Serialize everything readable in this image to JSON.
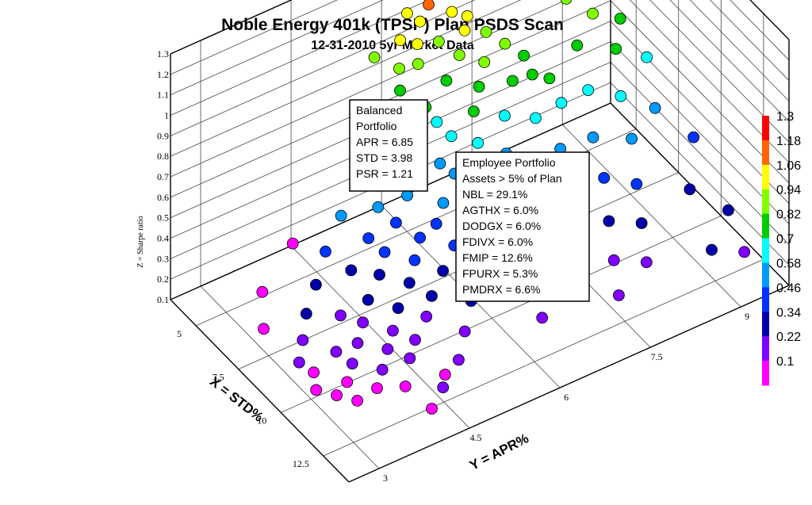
{
  "chart_data": {
    "type": "scatter",
    "projection": "3d",
    "title": "Noble Energy 401k (TPSP) Plan PSDS Scan",
    "subtitle": "12-31-2010 5yr Market Data",
    "xlabel": "X = STD%",
    "ylabel": "Y = APR%",
    "zlabel": "Z = Sharpe ratio",
    "x_ticks": [
      "5",
      "7.5",
      "10",
      "12.5"
    ],
    "y_ticks": [
      "3",
      "4.5",
      "6",
      "7.5",
      "9"
    ],
    "z_ticks": [
      "0.1",
      "0.2",
      "0.3",
      "0.4",
      "0.5",
      "0.6",
      "0.7",
      "0.8",
      "0.9",
      "1",
      "1.1",
      "1.2",
      "1.3"
    ],
    "xlim": [
      3.5,
      14
    ],
    "ylim": [
      2.5,
      9.8
    ],
    "zlim": [
      0.1,
      1.3
    ],
    "grid": true,
    "colorbar": {
      "ticks": [
        "1.3",
        "1.18",
        "1.06",
        "0.94",
        "0.82",
        "0.7",
        "0.58",
        "0.46",
        "0.34",
        "0.22",
        "0.1"
      ],
      "colors": [
        "#ff0000",
        "#ff6600",
        "#ffff00",
        "#80ff00",
        "#00cc00",
        "#00ffff",
        "#0099ff",
        "#0033ff",
        "#0000aa",
        "#8000ff",
        "#ff00ff"
      ]
    },
    "annotations": [
      {
        "name": "balanced-portfolio",
        "lines": [
          "Balanced",
          "Portfolio",
          "APR = 6.85",
          "STD = 3.98",
          "PSR = 1.21"
        ]
      },
      {
        "name": "employee-portfolio",
        "lines": [
          "Employee Portfolio",
          "Assets > 5% of Plan",
          "NBL = 29.1%",
          "AGTHX = 6.0%",
          "DODGX = 6.0%",
          "FDIVX = 6.0%",
          "FMIP = 12.6%",
          "FPURX = 5.3%",
          "PMDRX =  6.6%"
        ]
      }
    ],
    "points": [
      {
        "x": 4.0,
        "y": 6.85,
        "z": 1.21
      },
      {
        "x": 3.95,
        "y": 6.7,
        "z": 1.2
      },
      {
        "x": 4.1,
        "y": 7.0,
        "z": 1.19
      },
      {
        "x": 4.2,
        "y": 6.6,
        "z": 1.15
      },
      {
        "x": 4.3,
        "y": 7.1,
        "z": 1.14
      },
      {
        "x": 4.4,
        "y": 6.9,
        "z": 1.12
      },
      {
        "x": 4.5,
        "y": 6.5,
        "z": 1.1
      },
      {
        "x": 3.9,
        "y": 6.4,
        "z": 1.17
      },
      {
        "x": 4.6,
        "y": 7.2,
        "z": 1.08
      },
      {
        "x": 4.8,
        "y": 6.8,
        "z": 1.05
      },
      {
        "x": 5.0,
        "y": 7.0,
        "z": 1.02
      },
      {
        "x": 4.7,
        "y": 6.3,
        "z": 1.06
      },
      {
        "x": 5.2,
        "y": 6.9,
        "z": 0.98
      },
      {
        "x": 5.4,
        "y": 7.2,
        "z": 0.95
      },
      {
        "x": 5.1,
        "y": 6.5,
        "z": 0.97
      },
      {
        "x": 5.6,
        "y": 6.7,
        "z": 0.92
      },
      {
        "x": 5.8,
        "y": 7.4,
        "z": 0.9
      },
      {
        "x": 5.3,
        "y": 6.1,
        "z": 0.93
      },
      {
        "x": 6.0,
        "y": 7.0,
        "z": 0.88
      },
      {
        "x": 5.9,
        "y": 6.4,
        "z": 0.86
      },
      {
        "x": 6.2,
        "y": 7.6,
        "z": 0.85
      },
      {
        "x": 6.4,
        "y": 6.8,
        "z": 0.82
      },
      {
        "x": 6.1,
        "y": 6.0,
        "z": 0.8
      },
      {
        "x": 6.6,
        "y": 7.3,
        "z": 0.8
      },
      {
        "x": 6.8,
        "y": 6.6,
        "z": 0.76
      },
      {
        "x": 6.5,
        "y": 5.8,
        "z": 0.74
      },
      {
        "x": 7.0,
        "y": 7.8,
        "z": 0.78
      },
      {
        "x": 7.2,
        "y": 7.0,
        "z": 0.72
      },
      {
        "x": 6.9,
        "y": 6.2,
        "z": 0.7
      },
      {
        "x": 7.4,
        "y": 6.5,
        "z": 0.67
      },
      {
        "x": 7.1,
        "y": 5.6,
        "z": 0.64
      },
      {
        "x": 7.6,
        "y": 7.4,
        "z": 0.69
      },
      {
        "x": 7.8,
        "y": 6.0,
        "z": 0.62
      },
      {
        "x": 7.5,
        "y": 5.3,
        "z": 0.58
      },
      {
        "x": 8.0,
        "y": 6.8,
        "z": 0.63
      },
      {
        "x": 8.2,
        "y": 5.7,
        "z": 0.55
      },
      {
        "x": 7.9,
        "y": 5.0,
        "z": 0.52
      },
      {
        "x": 8.4,
        "y": 6.3,
        "z": 0.56
      },
      {
        "x": 8.6,
        "y": 5.2,
        "z": 0.48
      },
      {
        "x": 8.3,
        "y": 4.7,
        "z": 0.45
      },
      {
        "x": 8.8,
        "y": 5.9,
        "z": 0.5
      },
      {
        "x": 9.0,
        "y": 5.0,
        "z": 0.43
      },
      {
        "x": 8.7,
        "y": 4.5,
        "z": 0.4
      },
      {
        "x": 9.2,
        "y": 5.6,
        "z": 0.44
      },
      {
        "x": 9.4,
        "y": 4.8,
        "z": 0.38
      },
      {
        "x": 9.1,
        "y": 4.2,
        "z": 0.35
      },
      {
        "x": 9.6,
        "y": 5.3,
        "z": 0.39
      },
      {
        "x": 9.8,
        "y": 4.5,
        "z": 0.33
      },
      {
        "x": 9.5,
        "y": 4.0,
        "z": 0.3
      },
      {
        "x": 10.0,
        "y": 5.0,
        "z": 0.34
      },
      {
        "x": 10.2,
        "y": 4.3,
        "z": 0.28
      },
      {
        "x": 9.9,
        "y": 3.8,
        "z": 0.26
      },
      {
        "x": 10.4,
        "y": 4.8,
        "z": 0.3
      },
      {
        "x": 10.6,
        "y": 4.1,
        "z": 0.25
      },
      {
        "x": 10.3,
        "y": 3.6,
        "z": 0.22
      },
      {
        "x": 10.8,
        "y": 4.5,
        "z": 0.26
      },
      {
        "x": 11.0,
        "y": 3.9,
        "z": 0.21
      },
      {
        "x": 10.7,
        "y": 3.4,
        "z": 0.19
      },
      {
        "x": 11.2,
        "y": 4.3,
        "z": 0.23
      },
      {
        "x": 11.4,
        "y": 3.7,
        "z": 0.18
      },
      {
        "x": 5.0,
        "y": 8.2,
        "z": 1.0
      },
      {
        "x": 5.5,
        "y": 8.5,
        "z": 0.95
      },
      {
        "x": 6.0,
        "y": 8.8,
        "z": 0.88
      },
      {
        "x": 6.5,
        "y": 8.4,
        "z": 0.82
      },
      {
        "x": 7.0,
        "y": 8.9,
        "z": 0.78
      },
      {
        "x": 7.5,
        "y": 8.3,
        "z": 0.7
      },
      {
        "x": 8.0,
        "y": 8.7,
        "z": 0.66
      },
      {
        "x": 8.5,
        "y": 8.1,
        "z": 0.58
      },
      {
        "x": 9.0,
        "y": 8.6,
        "z": 0.55
      },
      {
        "x": 9.5,
        "y": 8.0,
        "z": 0.48
      },
      {
        "x": 10.0,
        "y": 8.4,
        "z": 0.44
      },
      {
        "x": 10.5,
        "y": 7.8,
        "z": 0.38
      },
      {
        "x": 11.0,
        "y": 8.2,
        "z": 0.36
      },
      {
        "x": 11.5,
        "y": 7.6,
        "z": 0.3
      },
      {
        "x": 12.0,
        "y": 8.0,
        "z": 0.28
      },
      {
        "x": 12.5,
        "y": 7.4,
        "z": 0.24
      },
      {
        "x": 6.2,
        "y": 9.2,
        "z": 0.82
      },
      {
        "x": 7.4,
        "y": 9.3,
        "z": 0.72
      },
      {
        "x": 8.6,
        "y": 9.1,
        "z": 0.6
      },
      {
        "x": 9.8,
        "y": 9.4,
        "z": 0.52
      },
      {
        "x": 11.0,
        "y": 9.0,
        "z": 0.42
      },
      {
        "x": 12.2,
        "y": 9.3,
        "z": 0.38
      },
      {
        "x": 13.0,
        "y": 8.8,
        "z": 0.32
      },
      {
        "x": 13.5,
        "y": 9.2,
        "z": 0.3
      },
      {
        "x": 5.8,
        "y": 5.2,
        "z": 0.72
      },
      {
        "x": 6.3,
        "y": 4.8,
        "z": 0.62
      },
      {
        "x": 6.8,
        "y": 4.4,
        "z": 0.54
      },
      {
        "x": 7.3,
        "y": 4.0,
        "z": 0.46
      },
      {
        "x": 7.8,
        "y": 3.7,
        "z": 0.38
      },
      {
        "x": 8.3,
        "y": 3.4,
        "z": 0.32
      },
      {
        "x": 8.8,
        "y": 3.2,
        "z": 0.26
      },
      {
        "x": 9.3,
        "y": 3.0,
        "z": 0.22
      },
      {
        "x": 9.8,
        "y": 3.1,
        "z": 0.2
      },
      {
        "x": 10.3,
        "y": 3.0,
        "z": 0.17
      },
      {
        "x": 10.8,
        "y": 3.2,
        "z": 0.16
      },
      {
        "x": 11.3,
        "y": 3.4,
        "z": 0.15
      },
      {
        "x": 5.3,
        "y": 5.8,
        "z": 0.84
      },
      {
        "x": 5.7,
        "y": 5.5,
        "z": 0.78
      },
      {
        "x": 6.6,
        "y": 5.2,
        "z": 0.64
      },
      {
        "x": 7.2,
        "y": 4.9,
        "z": 0.55
      },
      {
        "x": 7.7,
        "y": 4.6,
        "z": 0.48
      },
      {
        "x": 8.1,
        "y": 4.2,
        "z": 0.41
      },
      {
        "x": 8.9,
        "y": 3.8,
        "z": 0.31
      },
      {
        "x": 9.7,
        "y": 3.5,
        "z": 0.24
      },
      {
        "x": 4.9,
        "y": 5.9,
        "z": 0.9
      },
      {
        "x": 6.4,
        "y": 6.1,
        "z": 0.74
      },
      {
        "x": 7.3,
        "y": 5.9,
        "z": 0.64
      },
      {
        "x": 8.5,
        "y": 5.5,
        "z": 0.5
      },
      {
        "x": 9.3,
        "y": 6.0,
        "z": 0.47
      },
      {
        "x": 10.1,
        "y": 5.7,
        "z": 0.4
      },
      {
        "x": 10.9,
        "y": 5.4,
        "z": 0.34
      },
      {
        "x": 11.6,
        "y": 5.1,
        "z": 0.29
      },
      {
        "x": 12.3,
        "y": 4.8,
        "z": 0.25
      },
      {
        "x": 12.8,
        "y": 4.4,
        "z": 0.21
      },
      {
        "x": 13.2,
        "y": 4.1,
        "z": 0.18
      },
      {
        "x": 12.0,
        "y": 4.0,
        "z": 0.2
      },
      {
        "x": 6.7,
        "y": 7.6,
        "z": 0.8
      },
      {
        "x": 7.7,
        "y": 7.8,
        "z": 0.72
      },
      {
        "x": 8.7,
        "y": 7.5,
        "z": 0.62
      },
      {
        "x": 9.6,
        "y": 7.2,
        "z": 0.54
      },
      {
        "x": 10.4,
        "y": 7.0,
        "z": 0.47
      },
      {
        "x": 11.2,
        "y": 6.7,
        "z": 0.41
      },
      {
        "x": 11.9,
        "y": 6.4,
        "z": 0.36
      },
      {
        "x": 12.6,
        "y": 6.1,
        "z": 0.31
      },
      {
        "x": 4.5,
        "y": 5.6,
        "z": 0.96
      },
      {
        "x": 4.6,
        "y": 6.0,
        "z": 1.0
      },
      {
        "x": 4.3,
        "y": 6.2,
        "z": 1.08
      },
      {
        "x": 4.9,
        "y": 6.2,
        "z": 0.98
      },
      {
        "x": 3.6,
        "y": 4.5,
        "z": 0.12
      },
      {
        "x": 6.5,
        "y": 3.2,
        "z": 0.12
      },
      {
        "x": 11.5,
        "y": 4.8,
        "z": 0.11
      },
      {
        "x": 5.0,
        "y": 3.6,
        "z": 0.12
      }
    ]
  }
}
